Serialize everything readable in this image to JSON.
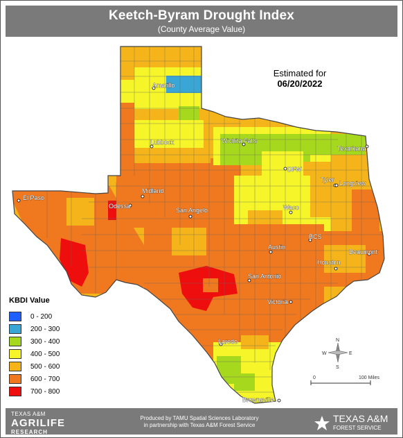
{
  "title": "Keetch-Byram Drought Index",
  "subtitle": "(County Average Value)",
  "estimate_label": "Estimated for",
  "estimate_date": "06/20/2022",
  "legend": {
    "title": "KBDI Value",
    "items": [
      {
        "label": "0 - 200",
        "color": "#1f5fff"
      },
      {
        "label": "200 - 300",
        "color": "#3aa6d6"
      },
      {
        "label": "300 - 400",
        "color": "#a6d81e"
      },
      {
        "label": "400 - 500",
        "color": "#f5f52a"
      },
      {
        "label": "500 - 600",
        "color": "#f5b51a"
      },
      {
        "label": "600 - 700",
        "color": "#f0781e"
      },
      {
        "label": "700 - 800",
        "color": "#ee0e0e"
      }
    ]
  },
  "cities": [
    "Amarillo",
    "Lubbock",
    "Wichita Falls",
    "Texarkana",
    "DFW",
    "Tyler",
    "Longview",
    "El Paso",
    "Midland",
    "Odessa",
    "San Angelo",
    "Waco",
    "BCS",
    "Austin",
    "Beaumont",
    "San Antonio",
    "Houston",
    "Victoria",
    "Laredo",
    "Brownsville"
  ],
  "scale": {
    "start": "0",
    "end": "100 Miles"
  },
  "compass": {
    "n": "N",
    "s": "S",
    "e": "E",
    "w": "W"
  },
  "footer": {
    "agrilife_top": "TEXAS A&M",
    "agrilife_main": "AGRILIFE",
    "agrilife_sub": "RESEARCH",
    "credit_line1": "Produced by TAMU Spatial Sciences Laboratory",
    "credit_line2": "in partnership with Texas A&M Forest Service",
    "tamfs_main": "TEXAS A&M",
    "tamfs_sub": "FOREST SERVICE"
  }
}
